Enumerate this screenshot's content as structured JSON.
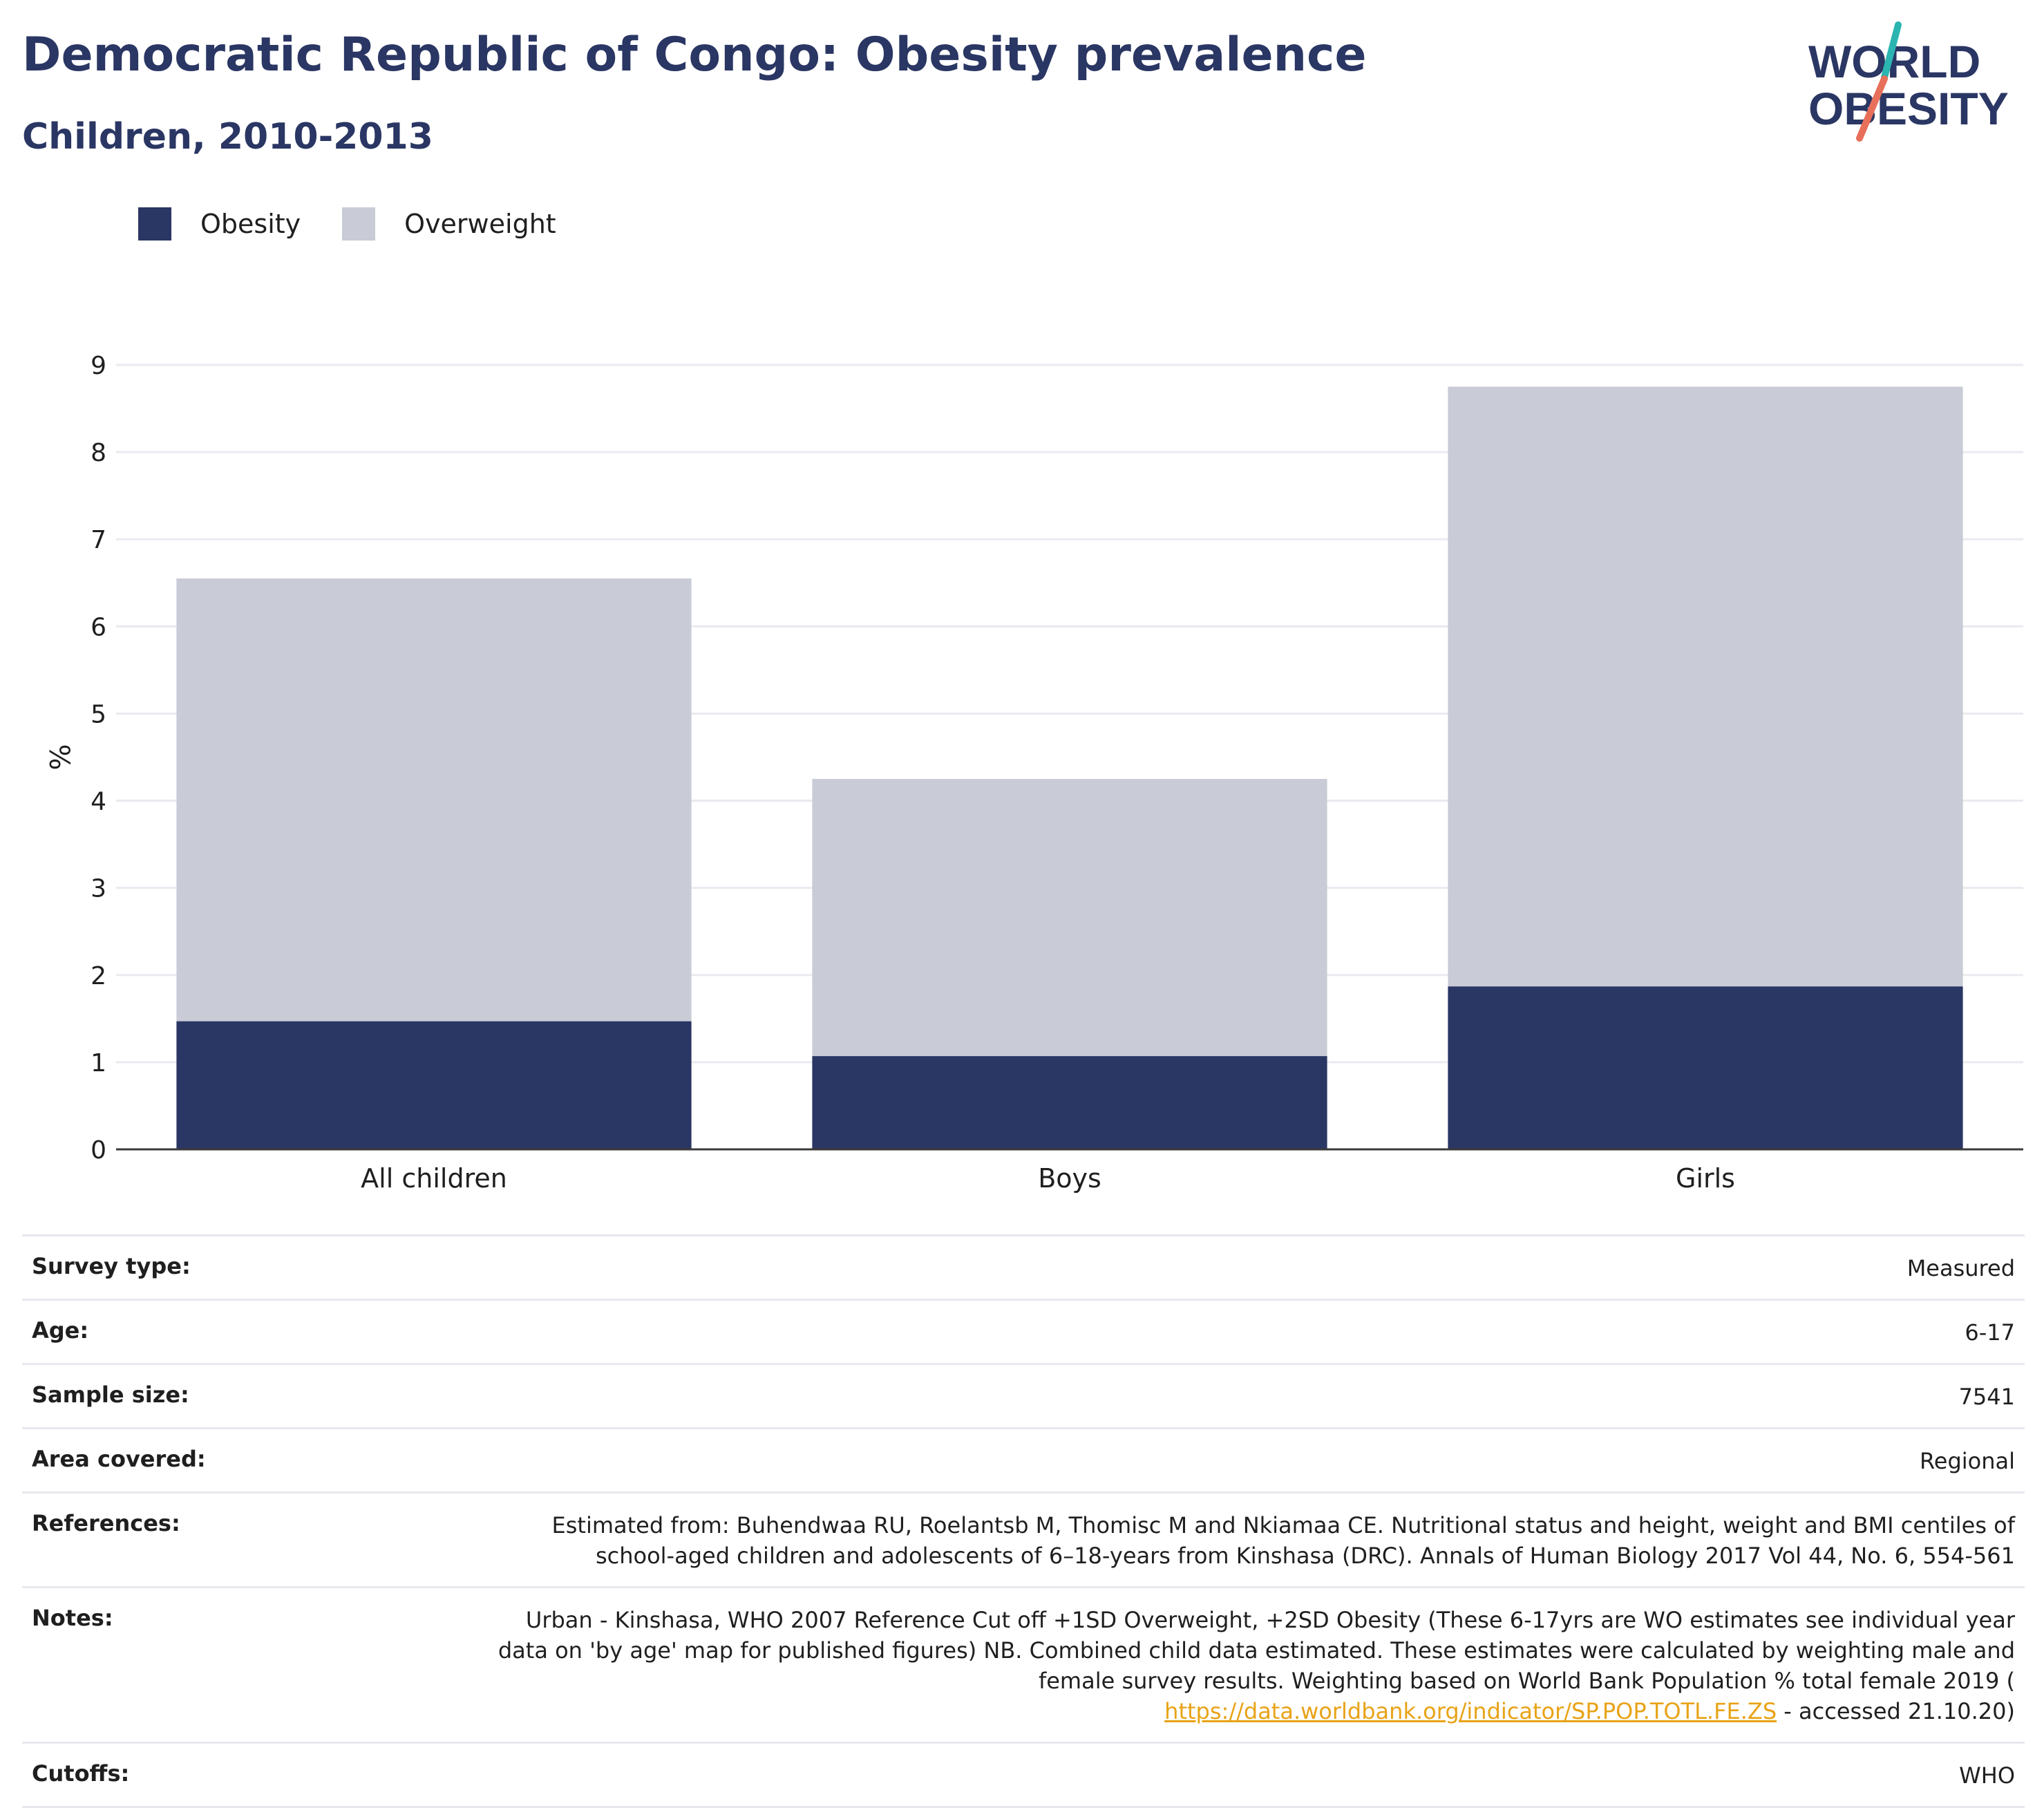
{
  "header": {
    "title": "Democratic Republic of Congo: Obesity prevalence",
    "subtitle": "Children, 2010-2013"
  },
  "logo": {
    "line1": "WORLD",
    "line2": "OBESITY"
  },
  "colors": {
    "title": "#2a3663",
    "obesity": "#2a3663",
    "overweight": "#c9cbd6",
    "gridline": "#eaeaf0",
    "link": "#e8a317",
    "logo_teal": "#2bb5b1",
    "logo_coral": "#e8705a"
  },
  "chart_data": {
    "type": "bar",
    "stacked": true,
    "title": "Democratic Republic of Congo: Obesity prevalence",
    "subtitle": "Children, 2010-2013",
    "ylabel": "%",
    "xlabel": "",
    "ylim": [
      0,
      9
    ],
    "yticks": [
      "0",
      "1",
      "2",
      "3",
      "4",
      "5",
      "6",
      "7",
      "8",
      "9"
    ],
    "categories": [
      "All children",
      "Boys",
      "Girls"
    ],
    "series": [
      {
        "name": "Obesity",
        "values": [
          1.47,
          1.07,
          1.87
        ]
      },
      {
        "name": "Overweight",
        "values": [
          5.08,
          3.18,
          6.88
        ]
      }
    ],
    "grid": true,
    "legend": "top-left"
  },
  "info_rows": [
    {
      "key": "Survey type:",
      "value": "Measured"
    },
    {
      "key": "Age:",
      "value": "6-17"
    },
    {
      "key": "Sample size:",
      "value": "7541"
    },
    {
      "key": "Area covered:",
      "value": "Regional"
    },
    {
      "key": "References:",
      "lines": [
        "Estimated from: Buhendwaa RU, Roelantsb M, Thomisc M and Nkiamaa CE. Nutritional status and height, weight and BMI centiles of",
        "school-aged children and adolescents of 6–18-years from Kinshasa (DRC). Annals of Human Biology 2017 Vol 44, No. 6, 554-561"
      ]
    },
    {
      "key": "Notes:",
      "lines": [
        "Urban - Kinshasa, WHO 2007 Reference Cut off +1SD Overweight, +2SD Obesity (These 6-17yrs are WO estimates see individual year",
        "data on 'by age' map for published figures) NB. Combined child data estimated. These estimates were calculated by weighting male and",
        "female survey results. Weighting based on World Bank Population % total female 2019 ("
      ],
      "link": "https://data.worldbank.org/indicator/SP.POP.TOTL.FE.ZS",
      "after_link": " - accessed 21.10.20)"
    },
    {
      "key": "Cutoffs:",
      "value": "WHO"
    }
  ]
}
